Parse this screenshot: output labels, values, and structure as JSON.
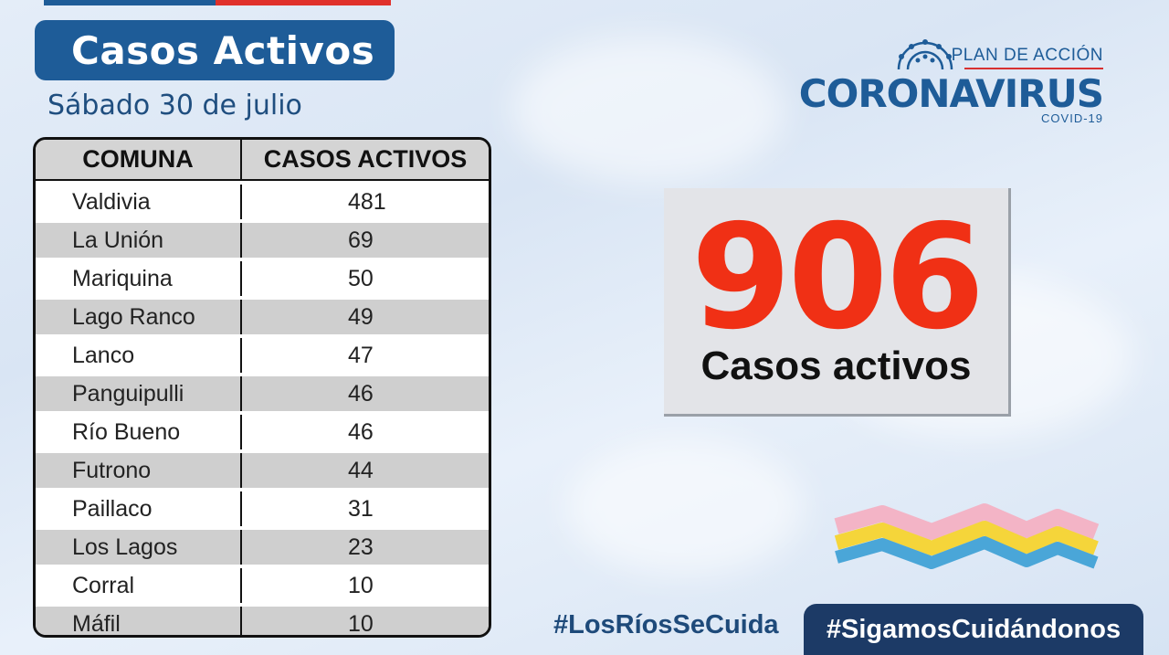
{
  "header": {
    "title": "Casos Activos",
    "date": "Sábado 30 de julio"
  },
  "logo": {
    "line1": "PLAN DE ACCIÓN",
    "line2": "CORONAVIRUS",
    "line3": "COVID-19"
  },
  "table": {
    "headers": [
      "COMUNA",
      "CASOS ACTIVOS"
    ],
    "rows": [
      {
        "comuna": "Valdivia",
        "casos": "481"
      },
      {
        "comuna": "La Unión",
        "casos": "69"
      },
      {
        "comuna": "Mariquina",
        "casos": "50"
      },
      {
        "comuna": "Lago Ranco",
        "casos": "49"
      },
      {
        "comuna": "Lanco",
        "casos": "47"
      },
      {
        "comuna": "Panguipulli",
        "casos": "46"
      },
      {
        "comuna": "Río Bueno",
        "casos": "46"
      },
      {
        "comuna": "Futrono",
        "casos": "44"
      },
      {
        "comuna": "Paillaco",
        "casos": "31"
      },
      {
        "comuna": "Los Lagos",
        "casos": "23"
      },
      {
        "comuna": "Corral",
        "casos": "10"
      },
      {
        "comuna": "Máfil",
        "casos": "10"
      }
    ]
  },
  "total": {
    "value": "906",
    "label": "Casos activos"
  },
  "footer": {
    "hashtag1": "#LosRíosSeCuida",
    "hashtag2": "#SigamosCuidándonos"
  },
  "colors": {
    "brand_blue": "#1e5c98",
    "accent_red": "#f03015",
    "navy": "#1c3a66"
  }
}
